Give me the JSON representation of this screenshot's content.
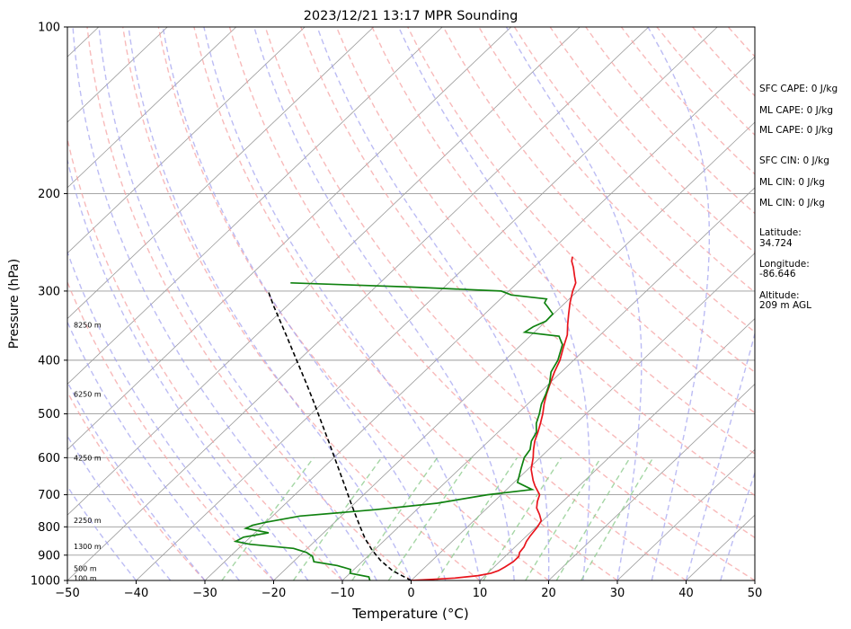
{
  "chart_data": {
    "type": "line",
    "title": "2023/12/21 13:17 MPR Sounding",
    "xlabel": "Temperature (°C)",
    "ylabel": "Pressure (hPa)",
    "xlim": [
      -50,
      50
    ],
    "ylim": [
      1000,
      100
    ],
    "y_scale": "log",
    "x_ticks": [
      "−50",
      "−40",
      "−30",
      "−20",
      "−10",
      "0",
      "10",
      "20",
      "30",
      "40",
      "50"
    ],
    "y_ticks": [
      "100",
      "200",
      "300",
      "400",
      "500",
      "600",
      "700",
      "800",
      "900",
      "1000"
    ],
    "grid": true,
    "series": [
      {
        "id": "temperature",
        "color": "#e8141c",
        "points": [
          [
            1000,
            0
          ],
          [
            995,
            3
          ],
          [
            990,
            6
          ],
          [
            980,
            9
          ],
          [
            970,
            10.5
          ],
          [
            960,
            11.2
          ],
          [
            945,
            11.6
          ],
          [
            925,
            12.0
          ],
          [
            905,
            12.0
          ],
          [
            890,
            11.5
          ],
          [
            870,
            11.3
          ],
          [
            850,
            10.8
          ],
          [
            830,
            10.5
          ],
          [
            800,
            10.2
          ],
          [
            780,
            9.8
          ],
          [
            760,
            8.6
          ],
          [
            740,
            7.2
          ],
          [
            720,
            6.3
          ],
          [
            700,
            5.6
          ],
          [
            675,
            3.6
          ],
          [
            660,
            2.5
          ],
          [
            630,
            0.5
          ],
          [
            600,
            -1.0
          ],
          [
            580,
            -2.2
          ],
          [
            560,
            -3.3
          ],
          [
            540,
            -4.2
          ],
          [
            520,
            -5.2
          ],
          [
            500,
            -6.3
          ],
          [
            480,
            -7.6
          ],
          [
            460,
            -8.8
          ],
          [
            440,
            -9.9
          ],
          [
            420,
            -11.0
          ],
          [
            400,
            -12.0
          ],
          [
            380,
            -13.4
          ],
          [
            360,
            -14.8
          ],
          [
            345,
            -16.3
          ],
          [
            330,
            -17.8
          ],
          [
            315,
            -19.3
          ],
          [
            300,
            -20.7
          ],
          [
            290,
            -21.5
          ],
          [
            282,
            -22.7
          ],
          [
            272,
            -24.2
          ],
          [
            265,
            -25.4
          ],
          [
            260,
            -26.0
          ]
        ]
      },
      {
        "id": "dewpoint",
        "color": "#108210",
        "points": [
          [
            1000,
            -6.0
          ],
          [
            985,
            -6.7
          ],
          [
            970,
            -10.0
          ],
          [
            955,
            -10.5
          ],
          [
            940,
            -13.0
          ],
          [
            925,
            -17.0
          ],
          [
            905,
            -18.0
          ],
          [
            890,
            -19.5
          ],
          [
            875,
            -22.0
          ],
          [
            860,
            -29.0
          ],
          [
            850,
            -31.5
          ],
          [
            835,
            -31.0
          ],
          [
            820,
            -28.0
          ],
          [
            805,
            -32.0
          ],
          [
            795,
            -31.5
          ],
          [
            785,
            -30.0
          ],
          [
            765,
            -26.0
          ],
          [
            745,
            -16.0
          ],
          [
            725,
            -8.0
          ],
          [
            700,
            -2.0
          ],
          [
            685,
            3.7
          ],
          [
            665,
            0.5
          ],
          [
            630,
            -1.0
          ],
          [
            600,
            -2.3
          ],
          [
            580,
            -2.7
          ],
          [
            560,
            -3.8
          ],
          [
            540,
            -4.4
          ],
          [
            520,
            -5.8
          ],
          [
            500,
            -6.8
          ],
          [
            480,
            -8.0
          ],
          [
            460,
            -8.9
          ],
          [
            440,
            -10.0
          ],
          [
            420,
            -11.5
          ],
          [
            400,
            -12.3
          ],
          [
            375,
            -14.0
          ],
          [
            362,
            -15.8
          ],
          [
            356,
            -21.4
          ],
          [
            348,
            -21.0
          ],
          [
            340,
            -20.0
          ],
          [
            330,
            -20.1
          ],
          [
            320,
            -22.0
          ],
          [
            315,
            -23.0
          ],
          [
            310,
            -23.3
          ],
          [
            305,
            -29.0
          ],
          [
            300,
            -31.1
          ],
          [
            295,
            -45.0
          ],
          [
            290,
            -63.0
          ]
        ]
      },
      {
        "id": "parcel",
        "color": "#000000",
        "points": [
          [
            1000,
            0
          ],
          [
            960,
            -4.2
          ],
          [
            920,
            -7.5
          ],
          [
            880,
            -10.4
          ],
          [
            840,
            -13.1
          ],
          [
            800,
            -15.6
          ],
          [
            760,
            -18.2
          ],
          [
            720,
            -20.9
          ],
          [
            680,
            -23.7
          ],
          [
            640,
            -26.7
          ],
          [
            600,
            -29.9
          ],
          [
            560,
            -33.3
          ],
          [
            520,
            -37.0
          ],
          [
            480,
            -41.0
          ],
          [
            440,
            -45.4
          ],
          [
            400,
            -50.3
          ],
          [
            360,
            -55.7
          ],
          [
            320,
            -61.8
          ],
          [
            300,
            -65.0
          ]
        ]
      }
    ],
    "height_labels": [
      {
        "text": "100 m",
        "p": 990
      },
      {
        "text": "500 m",
        "p": 950
      },
      {
        "text": "1300 m",
        "p": 868
      },
      {
        "text": "2250 m",
        "p": 778
      },
      {
        "text": "4250 m",
        "p": 600
      },
      {
        "text": "6250 m",
        "p": 460
      },
      {
        "text": "8250 m",
        "p": 345
      }
    ],
    "annotations": [
      "SFC CAPE: 0 J/kg",
      "ML CAPE: 0 J/kg",
      "ML CAPE: 0 J/kg",
      "SFC CIN: 0 J/kg",
      "ML CIN: 0 J/kg",
      "ML CIN: 0 J/kg",
      "Latitude:",
      "34.724",
      "Longitude:",
      "-86.646",
      "Altitude:",
      "209 m AGL"
    ],
    "colors": {
      "dry_adiabats": "#f5a3a3",
      "moist_adiabats": "#a0a0f0",
      "mixing_ratio": "#8fcc8f",
      "isotherms": "#9a9a9a",
      "isobars": "#9a9a9a"
    }
  }
}
